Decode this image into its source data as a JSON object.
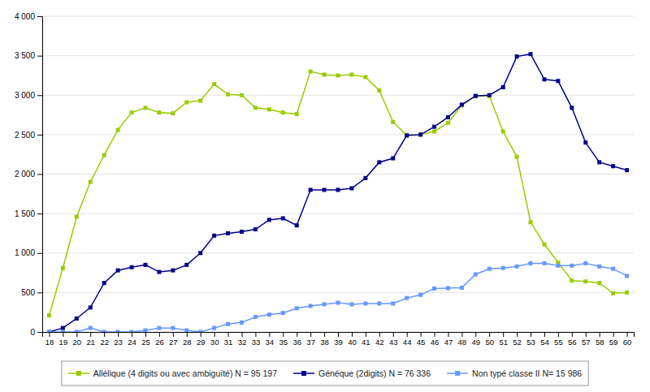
{
  "chart_data": {
    "type": "line",
    "x": [
      18,
      19,
      20,
      21,
      22,
      23,
      24,
      25,
      26,
      27,
      28,
      29,
      30,
      31,
      32,
      33,
      34,
      35,
      36,
      37,
      38,
      39,
      40,
      41,
      42,
      43,
      44,
      45,
      46,
      47,
      48,
      49,
      50,
      51,
      52,
      53,
      54,
      55,
      56,
      57,
      58,
      59,
      60
    ],
    "series": [
      {
        "name": "Allélique (4 digits ou avec ambiguïté) N = 95 197",
        "color": "#99CC00",
        "values": [
          210,
          810,
          1460,
          1900,
          2240,
          2560,
          2780,
          2840,
          2780,
          2770,
          2910,
          2930,
          3140,
          3010,
          3000,
          2840,
          2820,
          2780,
          2760,
          3300,
          3260,
          3250,
          3260,
          3230,
          3060,
          2660,
          2490,
          2500,
          2540,
          2650,
          2870,
          2990,
          2990,
          2540,
          2220,
          1390,
          1110,
          880,
          650,
          640,
          620,
          490,
          500
        ]
      },
      {
        "name": "Généque (2digits) N = 76 336",
        "color": "#00008B",
        "values": [
          0,
          50,
          170,
          310,
          620,
          780,
          820,
          850,
          760,
          780,
          850,
          1000,
          1220,
          1250,
          1270,
          1300,
          1420,
          1440,
          1350,
          1800,
          1800,
          1800,
          1820,
          1950,
          2150,
          2200,
          2490,
          2500,
          2600,
          2720,
          2880,
          2990,
          3000,
          3100,
          3490,
          3520,
          3200,
          3180,
          2840,
          2400,
          2150,
          2100,
          2050
        ]
      },
      {
        "name": "Non typé classe II N= 15 986",
        "color": "#6699FF",
        "values": [
          0,
          0,
          0,
          50,
          0,
          0,
          0,
          20,
          50,
          50,
          20,
          0,
          50,
          100,
          120,
          190,
          220,
          240,
          300,
          330,
          350,
          370,
          350,
          360,
          360,
          360,
          430,
          470,
          550,
          555,
          560,
          730,
          800,
          810,
          830,
          870,
          870,
          840,
          840,
          870,
          830,
          800,
          710
        ]
      }
    ],
    "xlim": [
      17.5,
      60.5
    ],
    "xticks": [
      18,
      19,
      20,
      21,
      22,
      23,
      24,
      25,
      26,
      27,
      28,
      29,
      30,
      31,
      32,
      33,
      34,
      35,
      36,
      37,
      38,
      39,
      40,
      41,
      42,
      43,
      44,
      45,
      46,
      47,
      48,
      49,
      50,
      51,
      52,
      53,
      54,
      55,
      56,
      57,
      58,
      59,
      60
    ],
    "ylim": [
      0,
      4000
    ],
    "yticks": [
      0,
      500,
      {
        "value": 1000,
        "label": "1 000"
      },
      {
        "value": 1500,
        "label": "1 500"
      },
      {
        "value": 2000,
        "label": "2 000"
      },
      {
        "value": 2500,
        "label": "2 500"
      },
      {
        "value": 3000,
        "label": "3 000"
      },
      {
        "value": 3500,
        "label": "3 500"
      },
      {
        "value": 4000,
        "label": "4 000"
      }
    ],
    "grid": true,
    "legend": "bottom",
    "marker": "square",
    "line_style": "solid"
  }
}
